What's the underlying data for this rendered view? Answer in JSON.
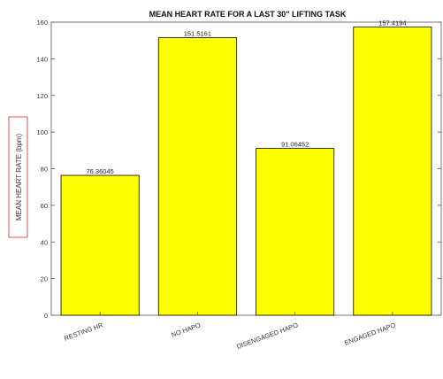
{
  "chart_data": {
    "type": "bar",
    "title": "MEAN HEART RATE FOR A LAST 30\" LIFTING TASK",
    "ylabel": "MEAN HEART RATE (bpm)",
    "xlabel": "",
    "categories": [
      "RESTING HR",
      "NO HAPO",
      "DISENGAGED HAPO",
      "ENGAGED HAPO"
    ],
    "values": [
      76.36045,
      151.5161,
      91.06452,
      157.4194
    ],
    "data_labels": [
      "76.36045",
      "151.5161",
      "91.06452",
      "157.4194"
    ],
    "ylim": [
      0,
      160
    ],
    "yticks": [
      0,
      20,
      40,
      60,
      80,
      100,
      120,
      140,
      160
    ],
    "grid": false,
    "bar_color": "#ffff00",
    "bar_edge_color": "#000000",
    "ylabel_box_color": "#d9534f"
  }
}
